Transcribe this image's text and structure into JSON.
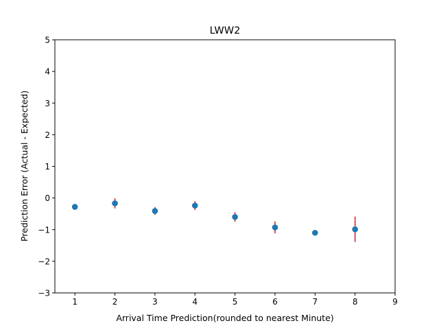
{
  "chart_data": {
    "type": "scatter",
    "title": "LWW2",
    "xlabel": "Arrival Time Prediction(rounded to nearest Minute)",
    "ylabel": "Prediction Error (Actual - Expected)",
    "xlim": [
      0.5,
      9
    ],
    "ylim": [
      -3,
      5
    ],
    "xticks": [
      1,
      2,
      3,
      4,
      5,
      6,
      7,
      8,
      9
    ],
    "yticks": [
      -3,
      -2,
      -1,
      0,
      1,
      2,
      3,
      4,
      5
    ],
    "grid": false,
    "marker_color": "#1f77b4",
    "errorbar_color": "#d62728",
    "points": [
      {
        "x": 1,
        "y": -0.28,
        "err": 0.09
      },
      {
        "x": 2,
        "y": -0.17,
        "err": 0.16
      },
      {
        "x": 3,
        "y": -0.41,
        "err": 0.12
      },
      {
        "x": 4,
        "y": -0.24,
        "err": 0.14
      },
      {
        "x": 5,
        "y": -0.6,
        "err": 0.15
      },
      {
        "x": 6,
        "y": -0.93,
        "err": 0.19
      },
      {
        "x": 7,
        "y": -1.1,
        "err": 0.0
      },
      {
        "x": 8,
        "y": -0.99,
        "err": 0.4
      }
    ]
  }
}
